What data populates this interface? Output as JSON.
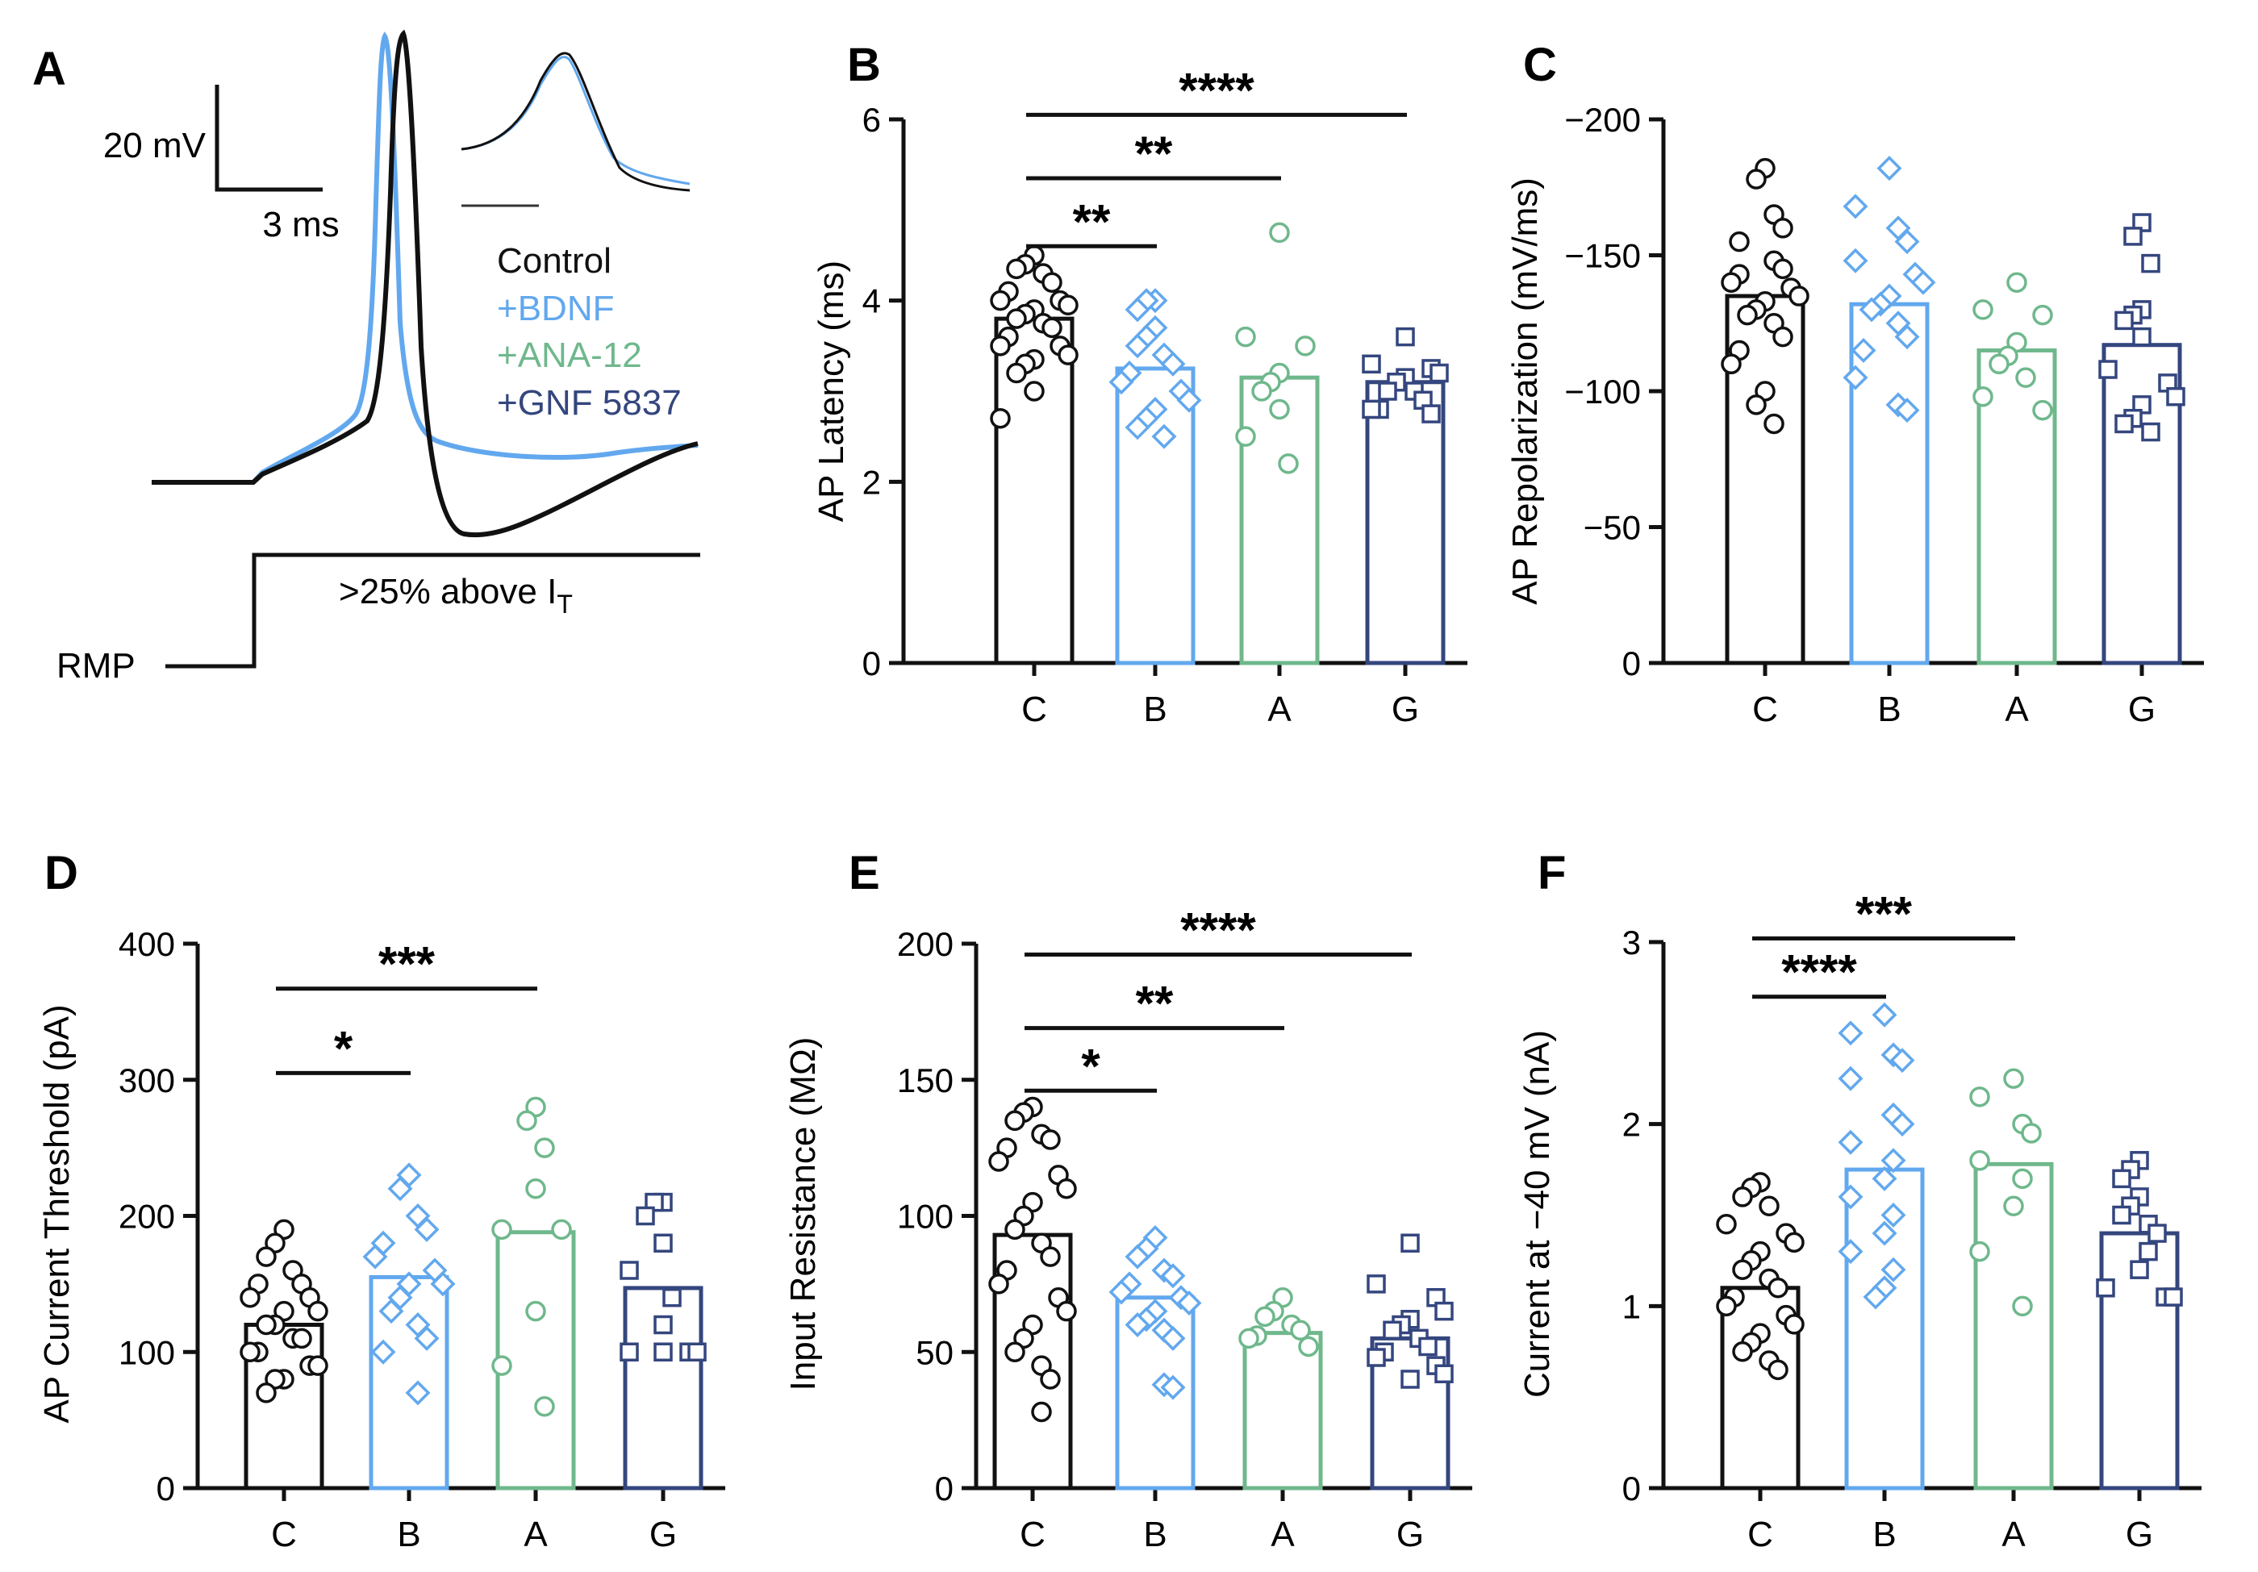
{
  "colors": {
    "C": "#111111",
    "B": "#62a8ee",
    "A": "#6fb88c",
    "G": "#34467e"
  },
  "panelA": {
    "letter": "A",
    "scale_y_label": "20 mV",
    "scale_x_label": "3 ms",
    "legend": [
      {
        "label": "Control",
        "group": "C"
      },
      {
        "label": "+BDNF",
        "group": "B"
      },
      {
        "label": "+ANA-12",
        "group": "A"
      },
      {
        "label": "+GNF 5837",
        "group": "G"
      }
    ],
    "rmp_label": "RMP",
    "step_label": ">25% above I",
    "step_label_sub": "T"
  },
  "chart_data": [
    {
      "panel": "B",
      "type": "bar",
      "ylabel": "AP Latency (ms)",
      "categories": [
        "C",
        "B",
        "A",
        "G"
      ],
      "ylim": [
        0,
        6
      ],
      "yticks": [
        0,
        2,
        4,
        6
      ],
      "ytick_labels": [
        "0",
        "2",
        "4",
        "6"
      ],
      "values": [
        3.8,
        3.25,
        3.15,
        3.1
      ],
      "points": [
        [
          4.5,
          4.4,
          4.35,
          4.3,
          4.2,
          4.1,
          4.0,
          4.0,
          3.95,
          3.9,
          3.85,
          3.8,
          3.75,
          3.7,
          3.6,
          3.5,
          3.5,
          3.4,
          3.35,
          3.3,
          3.2,
          3.0,
          2.7
        ],
        [
          4.0,
          4.0,
          3.9,
          3.7,
          3.6,
          3.5,
          3.4,
          3.3,
          3.2,
          3.1,
          3.0,
          2.9,
          2.8,
          2.7,
          2.6,
          2.5
        ],
        [
          4.75,
          3.6,
          3.5,
          3.2,
          3.1,
          3.0,
          2.8,
          2.5,
          2.2
        ],
        [
          3.6,
          3.3,
          3.25,
          3.2,
          3.15,
          3.1,
          3.0,
          3.0,
          2.9,
          2.8,
          2.8,
          2.75
        ]
      ],
      "significance": [
        {
          "from": "C",
          "to": "B",
          "y": 4.6,
          "label": "**"
        },
        {
          "from": "C",
          "to": "A",
          "y": 5.35,
          "label": "**"
        },
        {
          "from": "C",
          "to": "G",
          "y": 6.05,
          "label": "****"
        }
      ]
    },
    {
      "panel": "C",
      "type": "bar",
      "ylabel": "AP Repolarization (mV/ms)",
      "categories": [
        "C",
        "B",
        "A",
        "G"
      ],
      "ylim": [
        0,
        -200
      ],
      "yticks": [
        0,
        -50,
        -100,
        -150,
        -200
      ],
      "ytick_labels": [
        "0",
        "−50",
        "−100",
        "−150",
        "−200"
      ],
      "values": [
        -135,
        -132,
        -115,
        -117
      ],
      "points": [
        [
          -182,
          -178,
          -165,
          -160,
          -155,
          -148,
          -145,
          -143,
          -140,
          -138,
          -135,
          -133,
          -130,
          -128,
          -125,
          -120,
          -115,
          -110,
          -100,
          -95,
          -88
        ],
        [
          -182,
          -168,
          -160,
          -155,
          -148,
          -143,
          -140,
          -135,
          -132,
          -130,
          -125,
          -120,
          -115,
          -105,
          -95,
          -93
        ],
        [
          -140,
          -130,
          -128,
          -118,
          -113,
          -110,
          -105,
          -98,
          -93
        ],
        [
          -162,
          -157,
          -147,
          -130,
          -128,
          -126,
          -120,
          -108,
          -103,
          -98,
          -95,
          -90,
          -88,
          -85
        ]
      ],
      "significance": []
    },
    {
      "panel": "D",
      "type": "bar",
      "ylabel": "AP Current Threshold (pA)",
      "categories": [
        "C",
        "B",
        "A",
        "G"
      ],
      "ylim": [
        0,
        400
      ],
      "yticks": [
        0,
        100,
        200,
        300,
        400
      ],
      "ytick_labels": [
        "0",
        "100",
        "200",
        "300",
        "400"
      ],
      "values": [
        120,
        155,
        188,
        147
      ],
      "points": [
        [
          190,
          180,
          170,
          160,
          150,
          150,
          140,
          140,
          130,
          130,
          120,
          120,
          110,
          110,
          100,
          100,
          90,
          90,
          80,
          80,
          70
        ],
        [
          230,
          220,
          200,
          190,
          180,
          170,
          160,
          150,
          150,
          140,
          130,
          120,
          110,
          100,
          70
        ],
        [
          280,
          270,
          250,
          220,
          190,
          190,
          130,
          90,
          60
        ],
        [
          210,
          210,
          200,
          180,
          160,
          140,
          120,
          100,
          100,
          100,
          100
        ]
      ],
      "significance": [
        {
          "from": "C",
          "to": "B",
          "y": 305,
          "label": "*"
        },
        {
          "from": "C",
          "to": "A",
          "y": 367,
          "label": "***"
        }
      ]
    },
    {
      "panel": "E",
      "type": "bar",
      "ylabel": "Input Resistance (MΩ)",
      "categories": [
        "C",
        "B",
        "A",
        "G"
      ],
      "ylim": [
        0,
        200
      ],
      "yticks": [
        0,
        50,
        100,
        150,
        200
      ],
      "ytick_labels": [
        "0",
        "50",
        "100",
        "150",
        "200"
      ],
      "values": [
        93,
        70,
        57,
        55
      ],
      "points": [
        [
          140,
          138,
          135,
          130,
          128,
          125,
          120,
          115,
          110,
          105,
          100,
          95,
          90,
          85,
          80,
          75,
          70,
          65,
          60,
          55,
          50,
          45,
          40,
          28
        ],
        [
          92,
          88,
          85,
          80,
          78,
          75,
          72,
          70,
          68,
          65,
          62,
          60,
          58,
          55,
          38,
          37
        ],
        [
          70,
          65,
          63,
          60,
          58,
          56,
          55,
          52
        ],
        [
          90,
          75,
          70,
          65,
          62,
          60,
          58,
          55,
          52,
          50,
          48,
          45,
          42,
          40
        ]
      ],
      "significance": [
        {
          "from": "C",
          "to": "B",
          "y": 146,
          "label": "*"
        },
        {
          "from": "C",
          "to": "A",
          "y": 169,
          "label": "**"
        },
        {
          "from": "C",
          "to": "G",
          "y": 196,
          "label": "****"
        }
      ]
    },
    {
      "panel": "F",
      "type": "bar",
      "ylabel": "Current at −40 mV (nA)",
      "categories": [
        "C",
        "B",
        "A",
        "G"
      ],
      "ylim": [
        0,
        3
      ],
      "yticks": [
        0,
        1,
        2,
        3
      ],
      "ytick_labels": [
        "0",
        "1",
        "2",
        "3"
      ],
      "values": [
        1.1,
        1.75,
        1.78,
        1.4
      ],
      "points": [
        [
          1.68,
          1.65,
          1.6,
          1.55,
          1.45,
          1.4,
          1.35,
          1.3,
          1.25,
          1.2,
          1.15,
          1.1,
          1.05,
          1.0,
          0.95,
          0.9,
          0.85,
          0.8,
          0.75,
          0.7,
          0.65
        ],
        [
          2.6,
          2.5,
          2.38,
          2.35,
          2.25,
          2.05,
          2.0,
          1.9,
          1.8,
          1.7,
          1.6,
          1.5,
          1.4,
          1.3,
          1.2,
          1.1,
          1.05
        ],
        [
          2.25,
          2.15,
          2.0,
          1.95,
          1.8,
          1.7,
          1.55,
          1.3,
          1.0
        ],
        [
          1.8,
          1.75,
          1.7,
          1.6,
          1.55,
          1.5,
          1.45,
          1.4,
          1.3,
          1.2,
          1.1,
          1.05,
          1.05
        ]
      ],
      "significance": [
        {
          "from": "C",
          "to": "B",
          "y": 2.7,
          "label": "****"
        },
        {
          "from": "C",
          "to": "A",
          "y": 3.02,
          "label": "***"
        }
      ]
    }
  ]
}
